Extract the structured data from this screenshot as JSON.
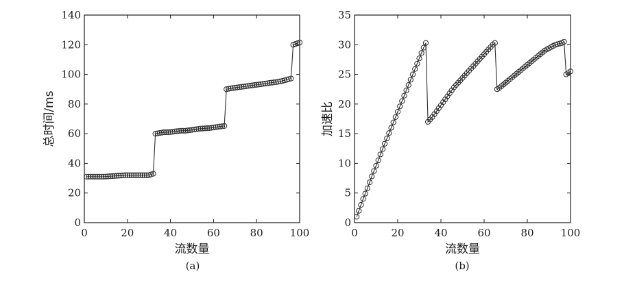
{
  "chart_data": [
    {
      "panel": "a",
      "type": "line",
      "caption": "(a)",
      "xlabel": "流数量",
      "ylabel": "总时间/ms",
      "xlim": [
        0,
        100
      ],
      "ylim": [
        0,
        140
      ],
      "xticks": [
        0,
        20,
        40,
        60,
        80,
        100
      ],
      "yticks": [
        0,
        20,
        40,
        60,
        80,
        100,
        120,
        140
      ],
      "markers": "open-circle",
      "grid": false,
      "series": [
        {
          "x": [
            1,
            2,
            3,
            4,
            5,
            6,
            7,
            8,
            9,
            10,
            11,
            12,
            13,
            14,
            15,
            16,
            17,
            18,
            19,
            20,
            21,
            22,
            23,
            24,
            25,
            26,
            27,
            28,
            29,
            30,
            31,
            32,
            33,
            34,
            35,
            36,
            37,
            38,
            39,
            40,
            41,
            42,
            43,
            44,
            45,
            46,
            47,
            48,
            49,
            50,
            51,
            52,
            53,
            54,
            55,
            56,
            57,
            58,
            59,
            60,
            61,
            62,
            63,
            64,
            65,
            66,
            67,
            68,
            69,
            70,
            71,
            72,
            73,
            74,
            75,
            76,
            77,
            78,
            79,
            80,
            81,
            82,
            83,
            84,
            85,
            86,
            87,
            88,
            89,
            90,
            91,
            92,
            93,
            94,
            95,
            96,
            97,
            98,
            99,
            100
          ],
          "y": [
            31,
            31,
            31,
            31,
            31,
            31,
            31,
            31,
            31,
            31.1,
            31.2,
            31.3,
            31.4,
            31.5,
            31.6,
            31.7,
            31.8,
            31.9,
            32,
            32,
            32,
            32,
            32,
            32,
            32,
            32,
            32,
            32,
            32,
            32,
            32.5,
            33,
            60,
            60.2,
            60.5,
            60.7,
            61,
            61,
            61,
            61.1,
            61.3,
            61.5,
            61.7,
            61.8,
            62,
            62,
            62,
            62.2,
            62.4,
            62.6,
            62.8,
            63,
            63.2,
            63.4,
            63.5,
            63.6,
            63.7,
            63.8,
            64,
            64.2,
            64.4,
            64.6,
            64.8,
            65,
            65.2,
            90,
            90.3,
            90.6,
            90.8,
            91,
            91.2,
            91.4,
            91.6,
            91.8,
            92,
            92.2,
            92.4,
            92.6,
            92.8,
            93,
            93.2,
            93.4,
            93.6,
            93.8,
            94,
            94.2,
            94.4,
            94.6,
            94.8,
            95,
            95.3,
            95.6,
            96,
            96.4,
            96.8,
            97.2,
            120,
            120.5,
            121,
            121.5
          ]
        }
      ]
    },
    {
      "panel": "b",
      "type": "line",
      "caption": "(b)",
      "xlabel": "流数量",
      "ylabel": "加速比",
      "xlim": [
        0,
        100
      ],
      "ylim": [
        0,
        35
      ],
      "xticks": [
        0,
        20,
        40,
        60,
        80,
        100
      ],
      "yticks": [
        0,
        5,
        10,
        15,
        20,
        25,
        30,
        35
      ],
      "markers": "open-circle",
      "grid": false,
      "series": [
        {
          "x": [
            1,
            2,
            3,
            4,
            5,
            6,
            7,
            8,
            9,
            10,
            11,
            12,
            13,
            14,
            15,
            16,
            17,
            18,
            19,
            20,
            21,
            22,
            23,
            24,
            25,
            26,
            27,
            28,
            29,
            30,
            31,
            32,
            33,
            34,
            35,
            36,
            37,
            38,
            39,
            40,
            41,
            42,
            43,
            44,
            45,
            46,
            47,
            48,
            49,
            50,
            51,
            52,
            53,
            54,
            55,
            56,
            57,
            58,
            59,
            60,
            61,
            62,
            63,
            64,
            65,
            66,
            67,
            68,
            69,
            70,
            71,
            72,
            73,
            74,
            75,
            76,
            77,
            78,
            79,
            80,
            81,
            82,
            83,
            84,
            85,
            86,
            87,
            88,
            89,
            90,
            91,
            92,
            93,
            94,
            95,
            96,
            97,
            98,
            99,
            100
          ],
          "y": [
            1,
            2,
            3,
            4,
            4.9,
            5.8,
            6.8,
            7.8,
            8.7,
            9.6,
            10.5,
            11.5,
            12.4,
            13.3,
            14.2,
            15.1,
            16,
            16.9,
            17.8,
            18.7,
            19.6,
            20.5,
            21.4,
            22.3,
            23.2,
            24.1,
            25,
            25.9,
            26.8,
            27.7,
            28.6,
            29.5,
            30.3,
            17,
            17.4,
            17.8,
            18.3,
            18.8,
            19.3,
            19.8,
            20.3,
            20.8,
            21.3,
            21.8,
            22.3,
            22.8,
            23.2,
            23.6,
            24,
            24.4,
            24.8,
            25.2,
            25.6,
            26,
            26.4,
            26.8,
            27.2,
            27.6,
            28,
            28.4,
            28.8,
            29.2,
            29.6,
            30,
            30.3,
            22.5,
            22.7,
            23,
            23.3,
            23.6,
            23.9,
            24.2,
            24.5,
            24.8,
            25.1,
            25.4,
            25.7,
            26,
            26.3,
            26.6,
            26.9,
            27.2,
            27.5,
            27.8,
            28.1,
            28.4,
            28.7,
            29,
            29.2,
            29.4,
            29.6,
            29.8,
            30,
            30.1,
            30.2,
            30.3,
            30.5,
            25,
            25.2,
            25.5
          ]
        }
      ]
    }
  ]
}
